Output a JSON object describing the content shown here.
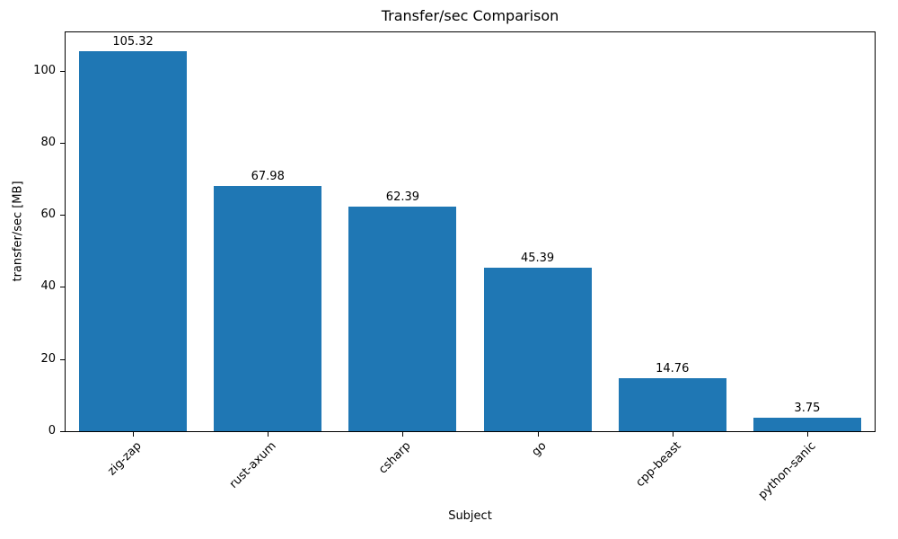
{
  "chart_data": {
    "type": "bar",
    "title": "Transfer/sec Comparison",
    "xlabel": "Subject",
    "ylabel": "transfer/sec [MB]",
    "categories": [
      "zig-zap",
      "rust-axum",
      "csharp",
      "go",
      "cpp-beast",
      "python-sanic"
    ],
    "values": [
      105.32,
      67.98,
      62.39,
      45.39,
      14.76,
      3.75
    ],
    "value_labels": [
      "105.32",
      "67.98",
      "62.39",
      "45.39",
      "14.76",
      "3.75"
    ],
    "bar_color": "#1f77b4",
    "ylim": [
      0,
      110.59
    ],
    "yticks": [
      0,
      20,
      40,
      60,
      80,
      100
    ],
    "grid": false,
    "legend_position": "none"
  }
}
